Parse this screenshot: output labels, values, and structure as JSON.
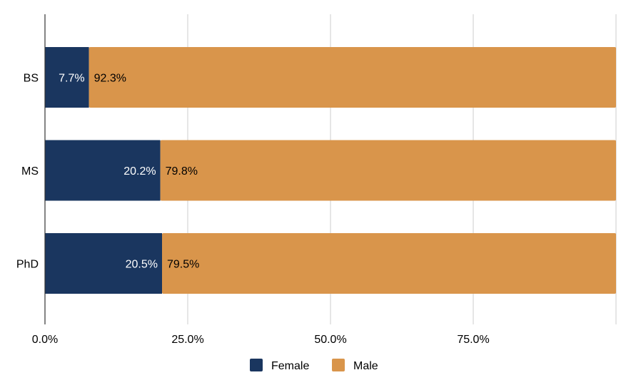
{
  "chart_data": {
    "type": "bar",
    "orientation": "horizontal",
    "stacked": true,
    "normalized": true,
    "categories": [
      "BS",
      "MS",
      "PhD"
    ],
    "series": [
      {
        "name": "Female",
        "color": "#1a365f",
        "values": [
          7.7,
          20.2,
          20.5
        ],
        "labels": [
          "7.7%",
          "20.2%",
          "20.5%"
        ],
        "label_color": "#ffffff"
      },
      {
        "name": "Male",
        "color": "#d9954b",
        "values": [
          92.3,
          79.8,
          79.5
        ],
        "labels": [
          "92.3%",
          "79.8%",
          "79.5%"
        ],
        "label_color": "#000000"
      }
    ],
    "xlim": [
      0,
      100
    ],
    "xticks": [
      0,
      25,
      50,
      75
    ],
    "xtick_labels": [
      "0.0%",
      "25.0%",
      "50.0%",
      "75.0%"
    ],
    "title": "",
    "xlabel": "",
    "ylabel": "",
    "grid": "vertical",
    "legend": "bottom-center"
  }
}
